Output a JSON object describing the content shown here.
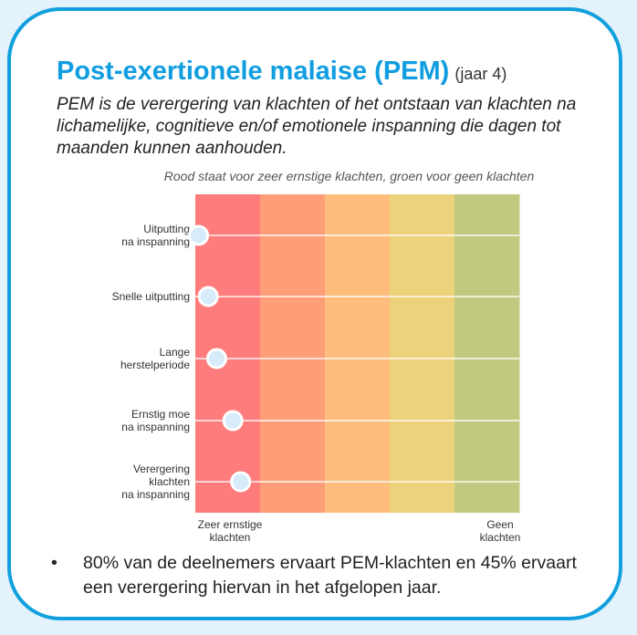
{
  "header": {
    "title": "Post-exertionele malaise (PEM)",
    "year": "(jaar 4)",
    "intro": "PEM is de verergering van klachten of het ontstaan van klachten na lichamelijke, cognitieve en/of emotionele inspanning die dagen tot maanden kunnen aanhouden."
  },
  "chart_data": {
    "type": "scatter",
    "title": "Rood staat voor zeer ernstige klachten, groen voor geen klachten",
    "band_colors": [
      "#fe7d7c",
      "#fe9e79",
      "#ffbd7d",
      "#edd27c",
      "#c3c880"
    ],
    "x_range": [
      0,
      5
    ],
    "x_labels": {
      "low": [
        "Zeer ernstige",
        "klachten"
      ],
      "high": [
        "Geen",
        "klachten"
      ]
    },
    "categories": [
      [
        "Uitputting",
        "na inspanning"
      ],
      [
        "Snelle uitputting"
      ],
      [
        "Lange",
        "herstelperiode"
      ],
      [
        "Ernstig moe",
        "na inspanning"
      ],
      [
        "Verergering",
        "klachten",
        "na inspanning"
      ]
    ],
    "values": [
      0.05,
      0.2,
      0.33,
      0.58,
      0.7
    ]
  },
  "bullet": {
    "marker": "•",
    "text": "80% van de deelnemers ervaart PEM-klachten en 45% ervaart een verergering hiervan in het afgelopen jaar."
  }
}
